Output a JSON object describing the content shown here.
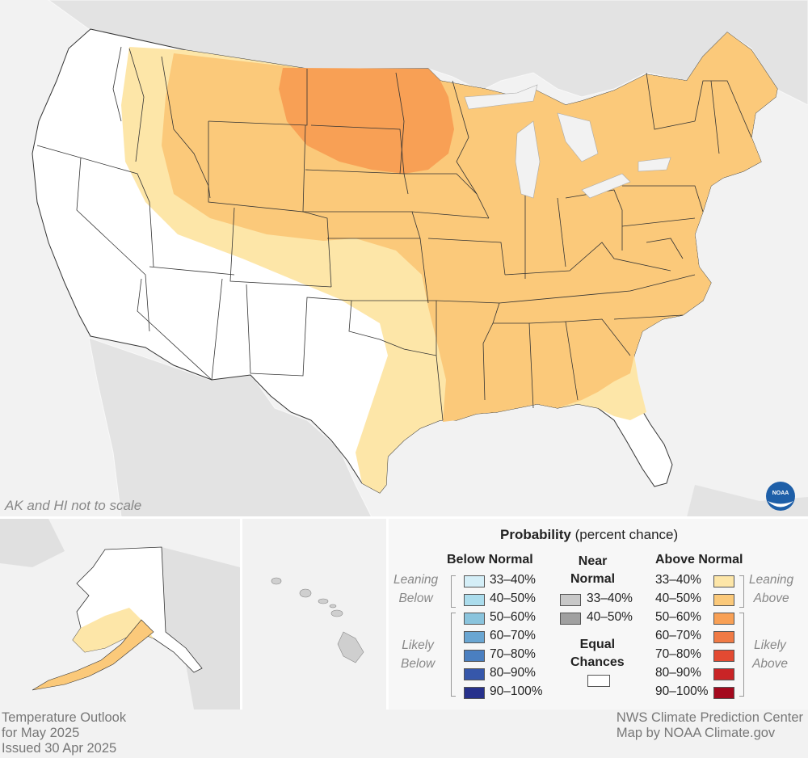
{
  "map": {
    "scale_note": "AK and HI not to scale"
  },
  "legend": {
    "title_bold": "Probability",
    "title_rest": " (percent chance)",
    "below_header": "Below Normal",
    "near_header": [
      "Near",
      "Normal"
    ],
    "above_header": "Above Normal",
    "leaning_below": [
      "Leaning",
      "Below"
    ],
    "likely_below": [
      "Likely",
      "Below"
    ],
    "leaning_above": [
      "Leaning",
      "Above"
    ],
    "likely_above": [
      "Likely",
      "Above"
    ],
    "equal_chances": [
      "Equal",
      "Chances"
    ],
    "below": [
      {
        "label": "33–40%",
        "color": "#d4eef7"
      },
      {
        "label": "40–50%",
        "color": "#abdcec"
      },
      {
        "label": "50–60%",
        "color": "#8ac4dd"
      },
      {
        "label": "60–70%",
        "color": "#6aa6d2"
      },
      {
        "label": "70–80%",
        "color": "#4a7fc0"
      },
      {
        "label": "80–90%",
        "color": "#3657aa"
      },
      {
        "label": "90–100%",
        "color": "#27318c"
      }
    ],
    "near": [
      {
        "label": "33–40%",
        "color": "#c8c8c8"
      },
      {
        "label": "40–50%",
        "color": "#a0a0a0"
      }
    ],
    "above": [
      {
        "label": "33–40%",
        "color": "#fde6a8"
      },
      {
        "label": "40–50%",
        "color": "#fbc97a"
      },
      {
        "label": "50–60%",
        "color": "#f8a055"
      },
      {
        "label": "60–70%",
        "color": "#f07a45"
      },
      {
        "label": "70–80%",
        "color": "#e34a32"
      },
      {
        "label": "80–90%",
        "color": "#c92426"
      },
      {
        "label": "90–100%",
        "color": "#a4091e"
      }
    ],
    "equal_color": "#ffffff"
  },
  "footer": {
    "left": [
      "Temperature Outlook",
      "for May 2025",
      "Issued 30 Apr 2025"
    ],
    "right": [
      "NWS Climate Prediction Center",
      "Map by NOAA Climate.gov"
    ]
  },
  "colors": {
    "background": "#f2f2f2",
    "land_neighbor": "#e3e3e3",
    "equal_chances": "#ffffff",
    "above_33_40": "#fde6a8",
    "above_40_50": "#fbc97a",
    "above_50_60": "#f8a055"
  }
}
